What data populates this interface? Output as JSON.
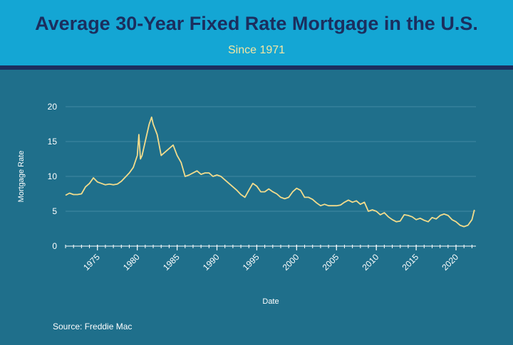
{
  "header": {
    "title": "Average 30-Year Fixed Rate Mortgage in the U.S.",
    "subtitle": "Since 1971"
  },
  "source": "Source: Freddie Mac",
  "colors": {
    "header_bg": "#14a6d4",
    "header_rule": "#1b2e5e",
    "title": "#1b2e5e",
    "subtitle": "#f4e6a2",
    "plot_bg": "#1f6f8b",
    "line": "#f2dc8c",
    "grid": "#4f93ab"
  },
  "chart_data": {
    "type": "line",
    "title": "Average 30-Year Fixed Rate Mortgage in the U.S.",
    "subtitle": "Since 1971",
    "xlabel": "Date",
    "ylabel": "Mortgage Rate",
    "xlim": [
      1971,
      2022.5
    ],
    "ylim": [
      0,
      20
    ],
    "yticks": [
      0,
      5,
      10,
      15,
      20
    ],
    "xticks": [
      1975,
      1980,
      1985,
      1990,
      1995,
      2000,
      2005,
      2010,
      2015,
      2020
    ],
    "grid": "horizontal",
    "legend": "none",
    "series": [
      {
        "x": [
          1971,
          1971.5,
          1972,
          1972.5,
          1973,
          1973.5,
          1974,
          1974.5,
          1975,
          1975.5,
          1976,
          1976.5,
          1977,
          1977.5,
          1978,
          1978.5,
          1979,
          1979.5,
          1980,
          1980.2,
          1980.4,
          1980.6,
          1980.8,
          1981,
          1981.5,
          1981.8,
          1982,
          1982.5,
          1983,
          1983.5,
          1984,
          1984.5,
          1985,
          1985.5,
          1986,
          1986.5,
          1987,
          1987.5,
          1988,
          1988.5,
          1989,
          1989.5,
          1990,
          1990.5,
          1991,
          1991.5,
          1992,
          1992.5,
          1993,
          1993.5,
          1994,
          1994.5,
          1995,
          1995.5,
          1996,
          1996.5,
          1997,
          1997.5,
          1998,
          1998.5,
          1999,
          1999.5,
          2000,
          2000.5,
          2001,
          2001.5,
          2002,
          2002.5,
          2003,
          2003.5,
          2004,
          2004.5,
          2005,
          2005.5,
          2006,
          2006.5,
          2007,
          2007.5,
          2008,
          2008.5,
          2009,
          2009.5,
          2010,
          2010.5,
          2011,
          2011.5,
          2012,
          2012.5,
          2013,
          2013.5,
          2014,
          2014.5,
          2015,
          2015.5,
          2016,
          2016.5,
          2017,
          2017.5,
          2018,
          2018.5,
          2019,
          2019.5,
          2020,
          2020.5,
          2021,
          2021.5,
          2022,
          2022.3
        ],
        "y": [
          7.3,
          7.6,
          7.4,
          7.4,
          7.5,
          8.5,
          9.0,
          9.8,
          9.2,
          9.0,
          8.8,
          8.9,
          8.8,
          8.9,
          9.3,
          9.9,
          10.5,
          11.3,
          13.0,
          16.0,
          12.5,
          13.0,
          14.0,
          15.0,
          17.5,
          18.5,
          17.5,
          16.0,
          13.0,
          13.5,
          14.0,
          14.5,
          13.0,
          12.0,
          10.0,
          10.2,
          10.5,
          10.8,
          10.3,
          10.5,
          10.5,
          10.0,
          10.2,
          10.0,
          9.5,
          9.0,
          8.5,
          8.0,
          7.4,
          7.0,
          8.0,
          9.0,
          8.6,
          7.8,
          7.8,
          8.2,
          7.8,
          7.5,
          7.0,
          6.8,
          7.0,
          7.8,
          8.3,
          8.0,
          7.0,
          7.0,
          6.7,
          6.2,
          5.8,
          6.0,
          5.8,
          5.8,
          5.8,
          5.9,
          6.3,
          6.6,
          6.3,
          6.5,
          6.0,
          6.3,
          5.0,
          5.2,
          5.0,
          4.5,
          4.8,
          4.2,
          3.8,
          3.5,
          3.6,
          4.5,
          4.4,
          4.2,
          3.8,
          4.0,
          3.7,
          3.5,
          4.1,
          3.9,
          4.4,
          4.6,
          4.4,
          3.8,
          3.5,
          3.0,
          2.8,
          3.0,
          3.8,
          5.2
        ]
      }
    ]
  }
}
